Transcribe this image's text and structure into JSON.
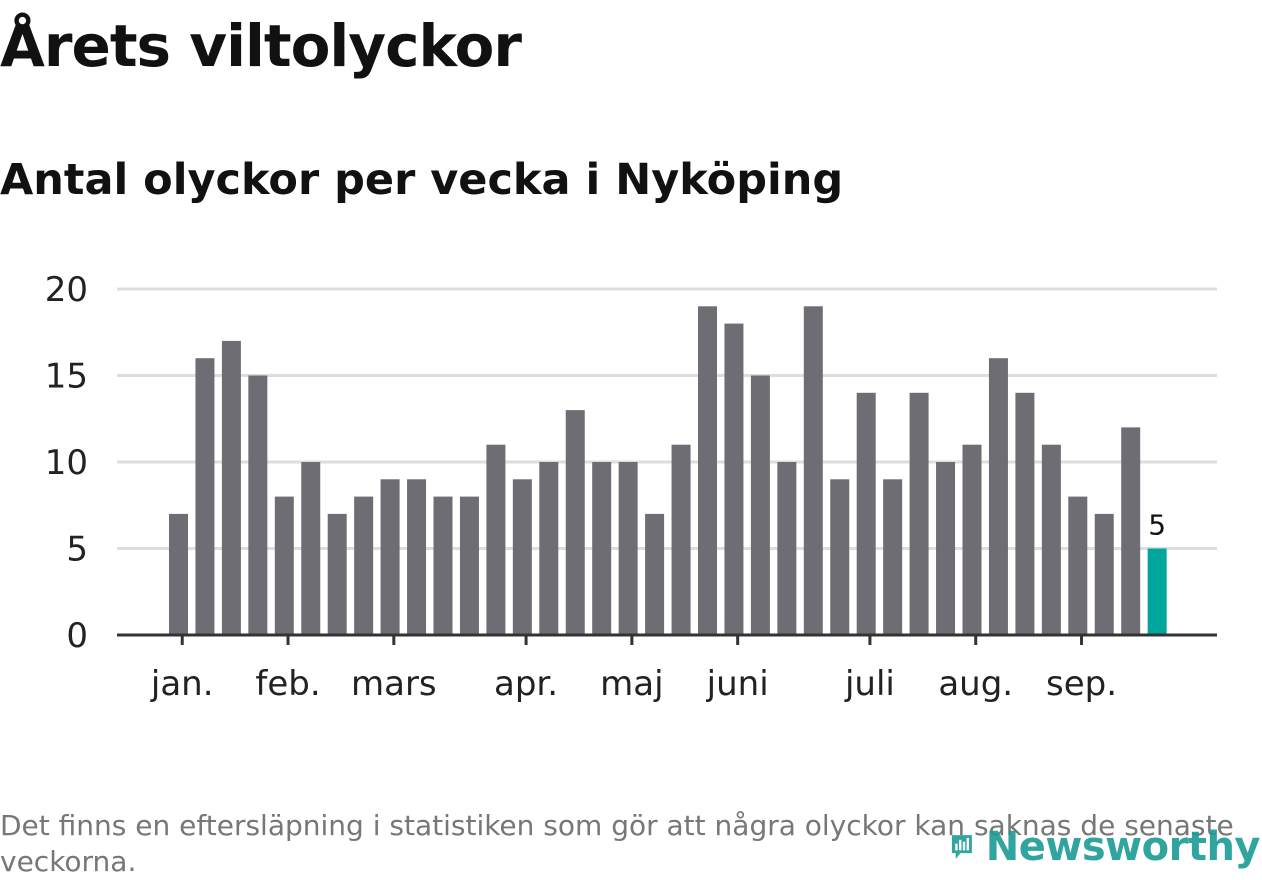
{
  "header": {
    "title": "Årets viltolyckor",
    "subtitle": "Antal olyckor per vecka i Nyköping"
  },
  "footer": {
    "note": "Det finns en eftersläpning i statistiken som gör att några olyckor kan saknas de senaste veckorna.",
    "brand": "Newsworthy"
  },
  "colors": {
    "bar": "#6e6d73",
    "highlight": "#00a59b",
    "grid": "#dddddd",
    "axis": "#333333",
    "brand": "#1a9c95"
  },
  "chart_data": {
    "type": "bar",
    "title": "Antal olyckor per vecka i Nyköping",
    "xlabel": "",
    "ylabel": "",
    "ylim": [
      0,
      20
    ],
    "yticks": [
      0,
      5,
      10,
      15,
      20
    ],
    "grid": true,
    "series": [
      {
        "values": [
          7,
          16,
          17,
          15,
          8,
          10,
          7,
          8,
          9,
          9,
          8,
          8,
          11,
          9,
          10,
          13,
          10,
          10,
          7,
          11,
          19,
          18,
          15,
          10,
          19,
          9,
          14,
          9,
          14,
          10,
          11,
          16,
          14,
          11,
          8,
          7,
          12,
          5
        ]
      }
    ],
    "highlight_last": true,
    "data_labels": [
      {
        "index": 37,
        "text": "5"
      }
    ],
    "month_ticks": [
      {
        "label": "jan.",
        "position": 0.5
      },
      {
        "label": "feb.",
        "position": 4.5
      },
      {
        "label": "mars",
        "position": 8.5
      },
      {
        "label": "apr.",
        "position": 13.5
      },
      {
        "label": "maj",
        "position": 17.5
      },
      {
        "label": "juni",
        "position": 21.5
      },
      {
        "label": "juli",
        "position": 26.5
      },
      {
        "label": "aug.",
        "position": 30.5
      },
      {
        "label": "sep.",
        "position": 34.5
      }
    ]
  }
}
